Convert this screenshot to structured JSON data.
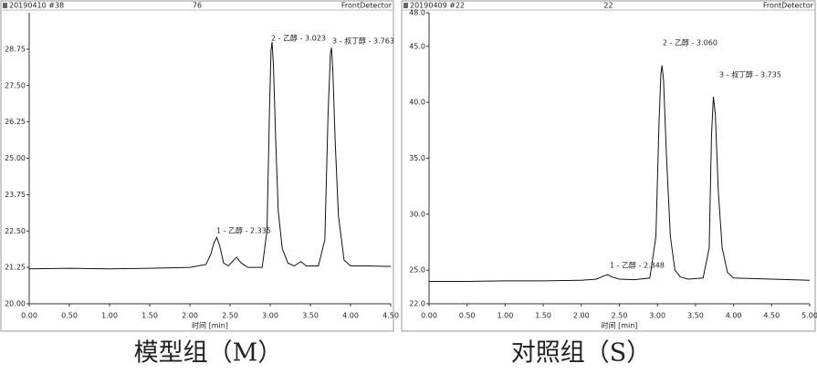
{
  "chart_data": [
    {
      "type": "line",
      "header": [
        "20190410 #38",
        "76",
        "FrontDetector"
      ],
      "xlabel": "时间 [min]",
      "caption": "模型组（M）",
      "annotations": [
        "1 - 乙醇 - 2.335",
        "2 - 乙醇 - 3.023",
        "3 - 叔丁醇 - 3.763"
      ],
      "color": "#111111",
      "x": [
        0,
        0.5,
        1.0,
        1.5,
        2.0,
        2.2,
        2.26,
        2.3,
        2.335,
        2.37,
        2.42,
        2.48,
        2.53,
        2.58,
        2.64,
        2.72,
        2.9,
        2.96,
        2.99,
        3.01,
        3.023,
        3.04,
        3.07,
        3.1,
        3.15,
        3.22,
        3.3,
        3.38,
        3.45,
        3.6,
        3.68,
        3.72,
        3.75,
        3.763,
        3.78,
        3.81,
        3.85,
        3.92,
        4.0,
        4.2,
        4.5
      ],
      "values": [
        21.2,
        21.22,
        21.2,
        21.22,
        21.25,
        21.35,
        21.7,
        22.1,
        22.28,
        22.0,
        21.4,
        21.3,
        21.45,
        21.6,
        21.4,
        21.25,
        21.25,
        22.5,
        26.5,
        28.7,
        29.0,
        28.2,
        25.5,
        23.2,
        21.9,
        21.4,
        21.3,
        21.45,
        21.3,
        21.3,
        22.2,
        26.5,
        28.6,
        28.8,
        28.0,
        25.5,
        23.0,
        21.5,
        21.3,
        21.3,
        21.28
      ],
      "xlim": [
        0,
        4.5
      ],
      "ylim": [
        20,
        30
      ],
      "xticks": [
        {
          "value": 0,
          "label": "0.00"
        },
        {
          "value": 0.5,
          "label": "0.50"
        },
        {
          "value": 1,
          "label": "1.00"
        },
        {
          "value": 1.5,
          "label": "1.50"
        },
        {
          "value": 2,
          "label": "2.00"
        },
        {
          "value": 2.5,
          "label": "2.50"
        },
        {
          "value": 3,
          "label": "3.00"
        },
        {
          "value": 3.5,
          "label": "3.50"
        },
        {
          "value": 4,
          "label": "4.00"
        },
        {
          "value": 4.5,
          "label": "4.50"
        }
      ],
      "yticks": [
        {
          "value": 20,
          "label": "20.00"
        },
        {
          "value": 21.25,
          "label": "21.25"
        },
        {
          "value": 22.5,
          "label": "22.50"
        },
        {
          "value": 23.75,
          "label": "23.75"
        },
        {
          "value": 25,
          "label": "25.00"
        },
        {
          "value": 26.25,
          "label": "26.25"
        },
        {
          "value": 27.5,
          "label": "27.50"
        },
        {
          "value": 28.75,
          "label": "28.75"
        }
      ]
    },
    {
      "type": "line",
      "header": [
        "20190409 #22",
        "22",
        "FrontDetector"
      ],
      "xlabel": "时间 [min]",
      "caption": "对照组（S）",
      "annotations": [
        "1 - 乙醇 - 2.348",
        "2 - 乙醇 - 3.060",
        "3 - 叔丁醇 - 3.735"
      ],
      "color": "#111111",
      "x": [
        0,
        0.5,
        1.0,
        1.5,
        2.0,
        2.2,
        2.3,
        2.348,
        2.4,
        2.5,
        2.7,
        2.9,
        2.98,
        3.02,
        3.045,
        3.06,
        3.08,
        3.12,
        3.17,
        3.23,
        3.3,
        3.4,
        3.6,
        3.68,
        3.71,
        3.735,
        3.76,
        3.8,
        3.85,
        3.92,
        4.0,
        4.5,
        5.0
      ],
      "values": [
        24.0,
        24.0,
        24.05,
        24.05,
        24.1,
        24.2,
        24.5,
        24.6,
        24.4,
        24.2,
        24.15,
        24.3,
        28,
        38,
        42.5,
        43.3,
        42,
        35,
        28,
        25,
        24.4,
        24.2,
        24.3,
        27,
        37,
        40.5,
        39,
        32,
        27,
        24.8,
        24.3,
        24.2,
        24.1
      ],
      "xlim": [
        0,
        5
      ],
      "ylim": [
        22,
        48
      ],
      "xticks": [
        {
          "value": 0,
          "label": "0.00"
        },
        {
          "value": 0.5,
          "label": "0.50"
        },
        {
          "value": 1,
          "label": "1.00"
        },
        {
          "value": 1.5,
          "label": "1.50"
        },
        {
          "value": 2,
          "label": "2.00"
        },
        {
          "value": 2.5,
          "label": "2.50"
        },
        {
          "value": 3,
          "label": "3.00"
        },
        {
          "value": 3.5,
          "label": "3.50"
        },
        {
          "value": 4,
          "label": "4.00"
        },
        {
          "value": 4.5,
          "label": "4.50"
        },
        {
          "value": 5,
          "label": "5.00"
        }
      ],
      "yticks": [
        {
          "value": 22,
          "label": "22.0"
        },
        {
          "value": 25,
          "label": "25.0"
        },
        {
          "value": 30,
          "label": "30.0"
        },
        {
          "value": 35,
          "label": "35.0"
        },
        {
          "value": 40,
          "label": "40.0"
        },
        {
          "value": 45,
          "label": "45.0"
        },
        {
          "value": 48,
          "label": "48.0"
        }
      ]
    }
  ]
}
